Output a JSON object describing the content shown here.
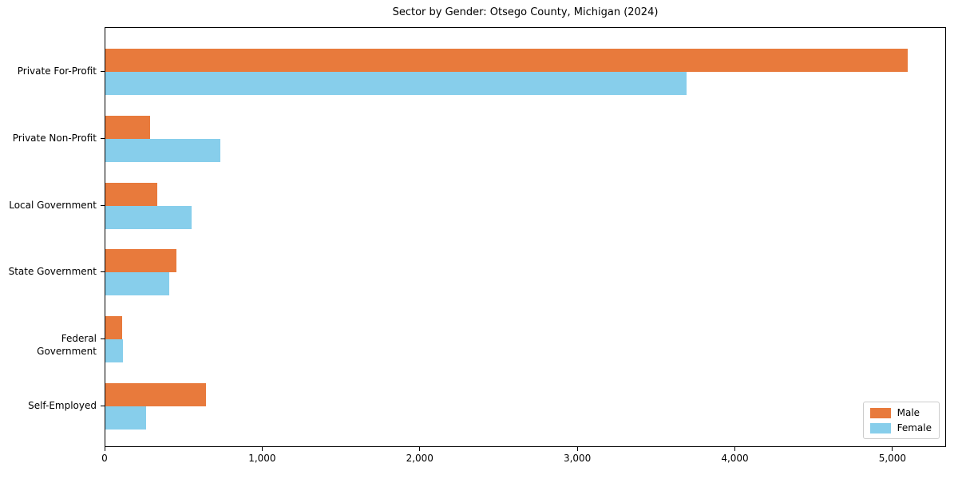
{
  "chart_data": {
    "type": "bar",
    "orientation": "horizontal",
    "title": "Sector by Gender: Otsego County, Michigan (2024)",
    "categories": [
      "Private For-Profit",
      "Private Non-Profit",
      "Local Government",
      "State Government",
      "Federal Government",
      "Self-Employed"
    ],
    "series": [
      {
        "name": "Male",
        "color": "#e87a3c",
        "values": [
          5090,
          285,
          330,
          450,
          105,
          640
        ]
      },
      {
        "name": "Female",
        "color": "#87ceeb",
        "values": [
          3690,
          730,
          545,
          405,
          110,
          260
        ]
      }
    ],
    "xlim": [
      0,
      5340
    ],
    "xticks": [
      0,
      1000,
      2000,
      3000,
      4000,
      5000
    ],
    "xtick_labels": [
      "0",
      "1,000",
      "2,000",
      "3,000",
      "4,000",
      "5,000"
    ],
    "xlabel": "",
    "ylabel": "",
    "grid": false,
    "legend_position": "lower right",
    "spine_color": "#000000",
    "background_color": "#ffffff"
  }
}
